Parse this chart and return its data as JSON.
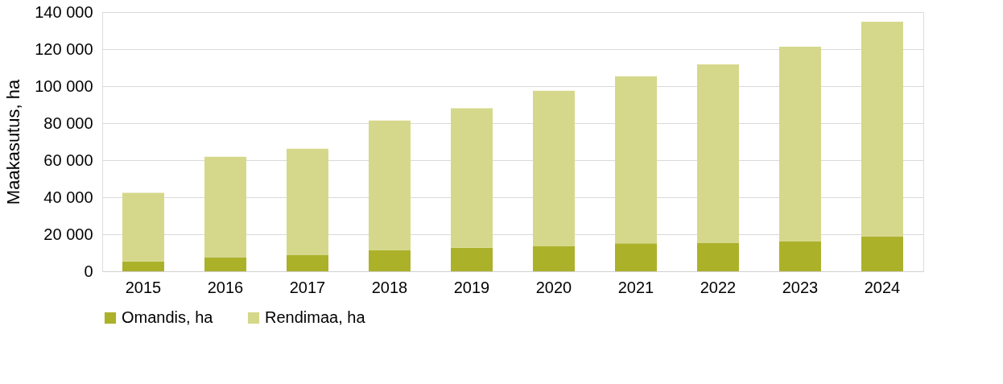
{
  "chart_data": {
    "type": "bar",
    "ylabel": "Maakasutus, ha",
    "stacked": true,
    "categories": [
      "2015",
      "2016",
      "2017",
      "2018",
      "2019",
      "2020",
      "2021",
      "2022",
      "2023",
      "2024"
    ],
    "series": [
      {
        "name": "Omandis, ha",
        "color": "#acb12a",
        "values": [
          5300,
          7600,
          8700,
          11500,
          12700,
          13500,
          15100,
          15400,
          16300,
          18900
        ]
      },
      {
        "name": "Rendimaa, ha",
        "color": "#d5d88a",
        "values": [
          37100,
          54300,
          57500,
          69900,
          75300,
          84000,
          90200,
          96300,
          105000,
          115900
        ]
      }
    ],
    "ylim": [
      0,
      140000
    ],
    "yticks": [
      {
        "value": 0,
        "label": "0"
      },
      {
        "value": 20000,
        "label": "20 000"
      },
      {
        "value": 40000,
        "label": "40 000"
      },
      {
        "value": 60000,
        "label": "60 000"
      },
      {
        "value": 80000,
        "label": "80 000"
      },
      {
        "value": 100000,
        "label": "100 000"
      },
      {
        "value": 120000,
        "label": "120 000"
      },
      {
        "value": 140000,
        "label": "140 000"
      }
    ],
    "grid": "y",
    "legend": "bottom"
  }
}
